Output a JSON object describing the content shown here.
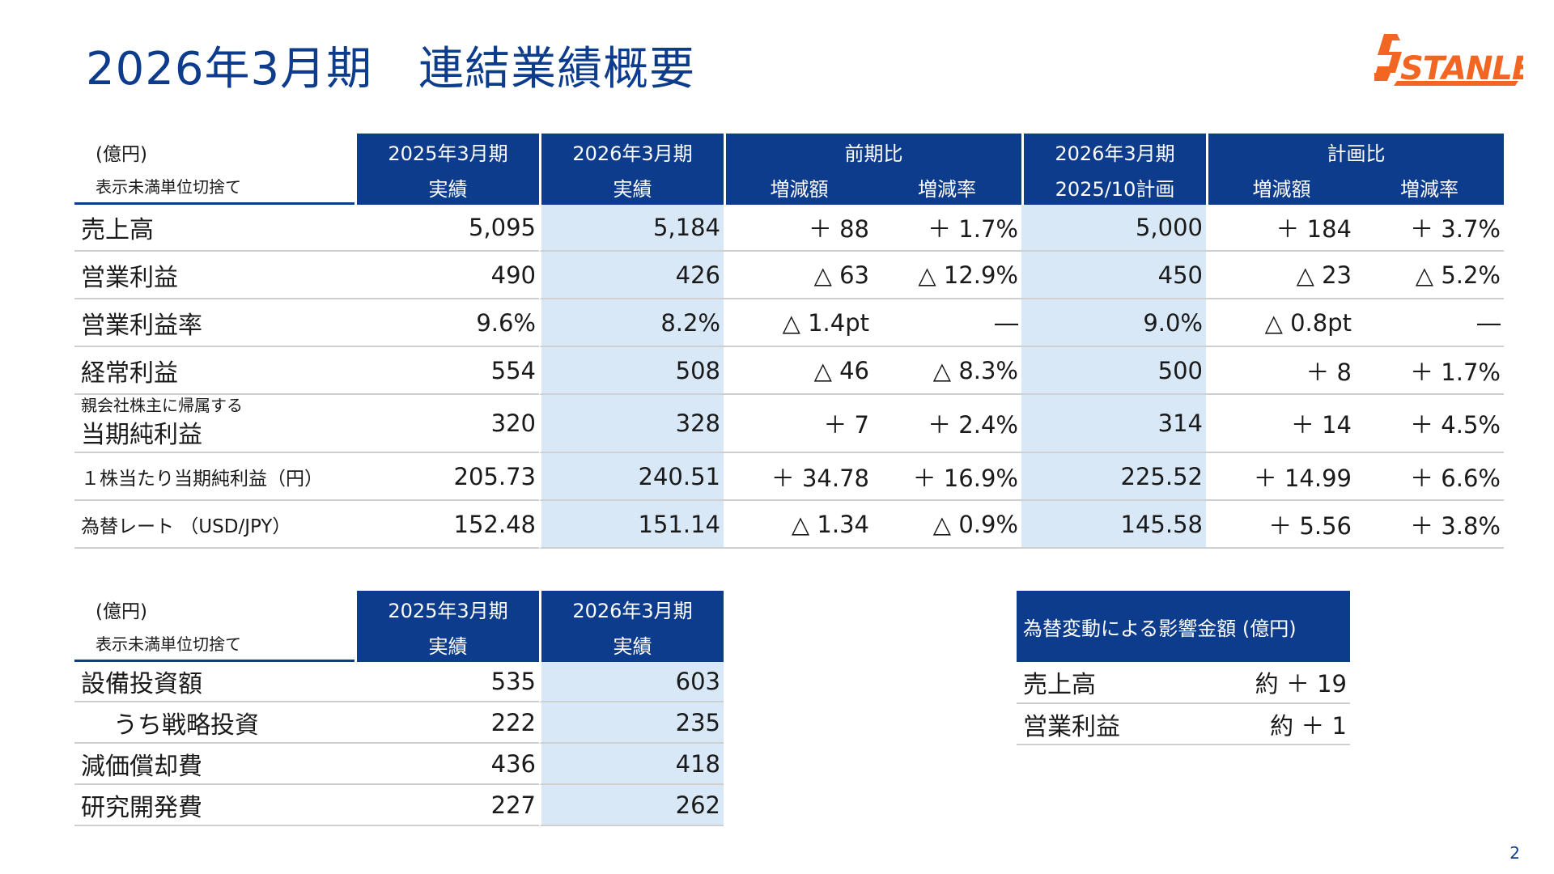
{
  "title": "2026年3月期　連結業績概要",
  "logo_text": "STANLEY",
  "page_number": "2",
  "colors": {
    "header": "#0d3c8c",
    "highlight": "#d9e8f7",
    "logo": "#f26522"
  },
  "main_table": {
    "unit": "(億円)",
    "unit_note": "表示未満単位切捨て",
    "headers": {
      "prev_period": "2025年3月期",
      "prev_sub": "実績",
      "curr_period": "2026年3月期",
      "curr_sub": "実績",
      "yoy": "前期比",
      "yoy_amount": "増減額",
      "yoy_rate": "増減率",
      "plan_period": "2026年3月期",
      "plan_sub": "2025/10計画",
      "vs_plan": "計画比",
      "plan_amount": "増減額",
      "plan_rate": "増減率"
    },
    "rows": [
      {
        "label": "売上高",
        "prev": "5,095",
        "curr": "5,184",
        "yoy_amt": "＋ 88",
        "yoy_rate": "＋ 1.7%",
        "plan": "5,000",
        "plan_amt": "＋ 184",
        "plan_rate": "＋ 3.7%"
      },
      {
        "label": "営業利益",
        "prev": "490",
        "curr": "426",
        "yoy_amt": "△ 63",
        "yoy_rate": "△ 12.9%",
        "plan": "450",
        "plan_amt": "△ 23",
        "plan_rate": "△ 5.2%"
      },
      {
        "label": "営業利益率",
        "prev": "9.6%",
        "curr": "8.2%",
        "yoy_amt": "△ 1.4pt",
        "yoy_rate": "―",
        "plan": "9.0%",
        "plan_amt": "△ 0.8pt",
        "plan_rate": "―"
      },
      {
        "label": "経常利益",
        "prev": "554",
        "curr": "508",
        "yoy_amt": "△ 46",
        "yoy_rate": "△ 8.3%",
        "plan": "500",
        "plan_amt": "＋ 8",
        "plan_rate": "＋ 1.7%"
      },
      {
        "caption": "親会社株主に帰属する",
        "label": "当期純利益",
        "prev": "320",
        "curr": "328",
        "yoy_amt": "＋ 7",
        "yoy_rate": "＋ 2.4%",
        "plan": "314",
        "plan_amt": "＋ 14",
        "plan_rate": "＋ 4.5%"
      },
      {
        "label": "１株当たり当期純利益（円）",
        "prev": "205.73",
        "curr": "240.51",
        "yoy_amt": "＋ 34.78",
        "yoy_rate": "＋ 16.9%",
        "plan": "225.52",
        "plan_amt": "＋ 14.99",
        "plan_rate": "＋ 6.6%"
      },
      {
        "label": "為替レート （USD/JPY）",
        "prev": "152.48",
        "curr": "151.14",
        "yoy_amt": "△ 1.34",
        "yoy_rate": "△ 0.9%",
        "plan": "145.58",
        "plan_amt": "＋ 5.56",
        "plan_rate": "＋ 3.8%"
      }
    ]
  },
  "capex_table": {
    "unit": "(億円)",
    "unit_note": "表示未満単位切捨て",
    "headers": {
      "prev_period": "2025年3月期",
      "prev_sub": "実績",
      "curr_period": "2026年3月期",
      "curr_sub": "実績"
    },
    "rows": [
      {
        "label": "設備投資額",
        "prev": "535",
        "curr": "603"
      },
      {
        "label": "うち戦略投資",
        "prev": "222",
        "curr": "235"
      },
      {
        "label": "減価償却費",
        "prev": "436",
        "curr": "418"
      },
      {
        "label": "研究開発費",
        "prev": "227",
        "curr": "262"
      }
    ]
  },
  "fx_table": {
    "header": "為替変動による影響金額 (億円)",
    "rows": [
      {
        "label": "売上高",
        "value": "約 ＋ 19"
      },
      {
        "label": "営業利益",
        "value": "約 ＋ 1"
      }
    ]
  }
}
